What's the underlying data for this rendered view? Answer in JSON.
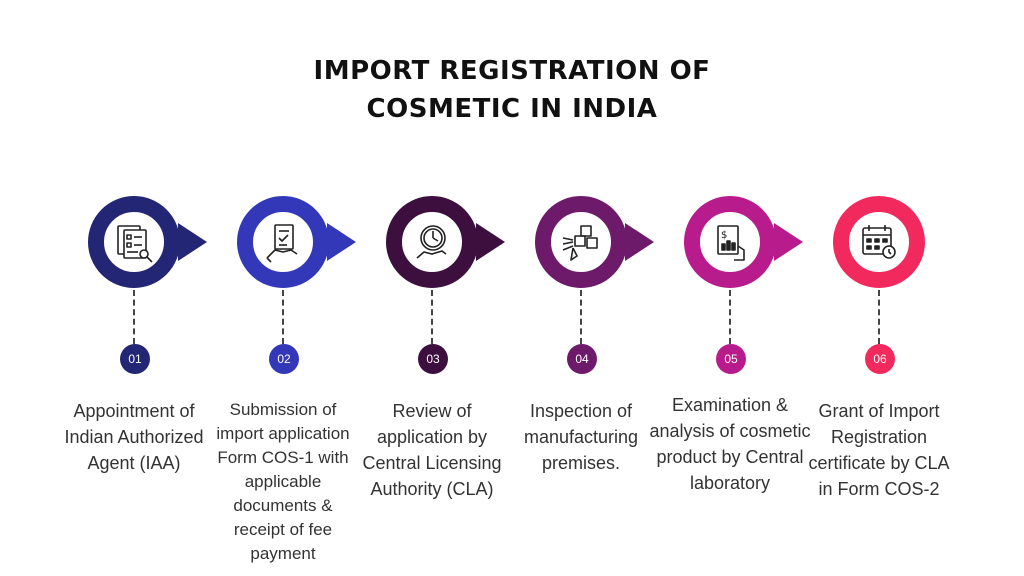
{
  "title": {
    "line1": "IMPORT REGISTRATION OF",
    "line2": "COSMETIC IN INDIA"
  },
  "steps": [
    {
      "number": "01",
      "label": "Appointment of Indian Authorized Agent (IAA)",
      "color": "#232575",
      "icon": "agent-documents-icon"
    },
    {
      "number": "02",
      "label": "Submission of import application Form COS-1 with applicable documents & receipt of fee payment",
      "color": "#3338b8",
      "icon": "document-submission-icon"
    },
    {
      "number": "03",
      "label": "Review of application by Central Licensing Authority (CLA)",
      "color": "#3d0f3f",
      "icon": "clock-review-icon"
    },
    {
      "number": "04",
      "label": "Inspection of manufacturing premises.",
      "color": "#6e1a6b",
      "icon": "inspection-cubes-icon"
    },
    {
      "number": "05",
      "label": "Examination & analysis of cosmetic product by Central laboratory",
      "color": "#b81c8c",
      "icon": "lab-analysis-icon"
    },
    {
      "number": "06",
      "label": "Grant of Import Registration certificate by CLA in Form COS-2",
      "color": "#f2295c",
      "icon": "calendar-certificate-icon"
    }
  ]
}
